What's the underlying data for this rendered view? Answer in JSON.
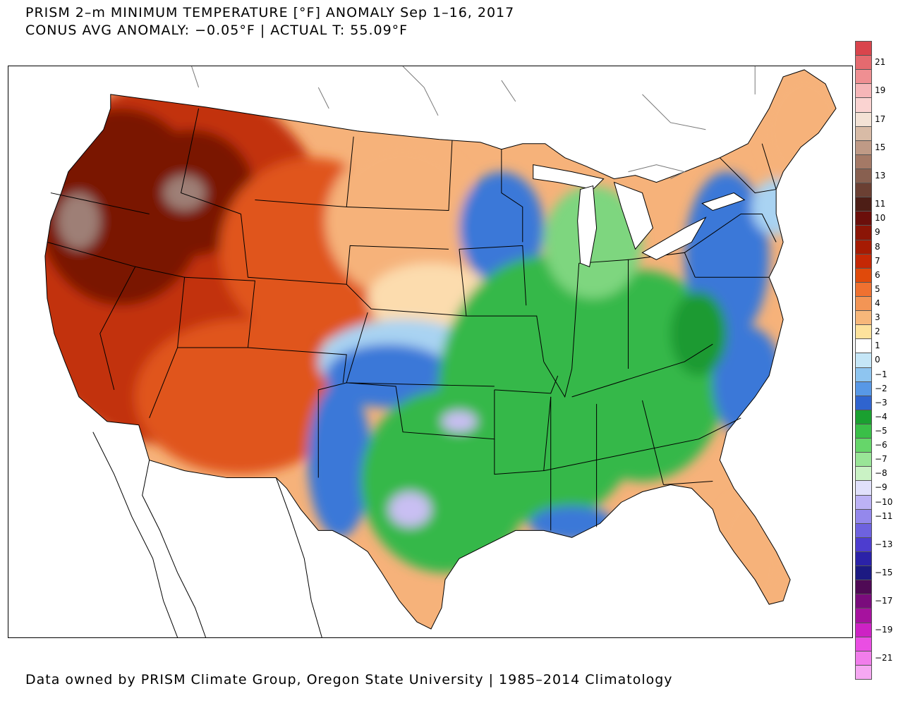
{
  "header": {
    "title_line1": "PRISM 2–m MINIMUM TEMPERATURE [°F] ANOMALY Sep 1–16, 2017",
    "title_line2": "CONUS AVG ANOMALY: −0.05°F | ACTUAL T: 55.09°F"
  },
  "footer": {
    "text": "Data owned by PRISM Climate Group, Oregon State University | 1985–2014 Climatology"
  },
  "legend": {
    "colors": [
      "#d9444c",
      "#e56a6f",
      "#ef8f92",
      "#f6b6b8",
      "#fad3d1",
      "#f3e2d5",
      "#d8bba6",
      "#bf9a86",
      "#a47966",
      "#886050",
      "#6b4033",
      "#4d1e16",
      "#6b0f0b",
      "#8b1506",
      "#a61b03",
      "#c52805",
      "#e04a0b",
      "#ef7130",
      "#f39555",
      "#f7b77a",
      "#fde29c",
      "#ffffff",
      "#c5e6f7",
      "#8ec5f0",
      "#5898e6",
      "#2f64cf",
      "#1aa030",
      "#3abf48",
      "#66d66a",
      "#99e597",
      "#caf2c5",
      "#e0e0fb",
      "#bcb2f5",
      "#9488ec",
      "#6e62df",
      "#4d3dcf",
      "#2b22a8",
      "#1c1a82",
      "#4f0a55",
      "#7a0c7c",
      "#a6129e",
      "#cd22c4",
      "#ea4ee3",
      "#f17deb",
      "#f6a8f2"
    ],
    "ticks": [
      "21",
      "19",
      "17",
      "15",
      "13",
      "11",
      "10",
      "9",
      "8",
      "7",
      "6",
      "5",
      "4",
      "3",
      "2",
      "1",
      "0",
      "−1",
      "−2",
      "−3",
      "−4",
      "−5",
      "−6",
      "−7",
      "−8",
      "−9",
      "−10",
      "−11",
      "−13",
      "−15",
      "−17",
      "−19",
      "−21"
    ]
  },
  "map": {
    "palette": {
      "dark_red": "#7a1206",
      "red": "#c2300a",
      "orange_red": "#e0551c",
      "orange": "#ef8a4c",
      "light_orange": "#f6b27a",
      "pale": "#fcdcae",
      "white": "#ffffff",
      "light_blue": "#a9d3f2",
      "blue": "#3a78d8",
      "green": "#35b84a",
      "light_green": "#7ed67f",
      "dark_green": "#1f9a33",
      "lavender": "#c9bff3",
      "grey_brown": "#9e7f76"
    }
  }
}
